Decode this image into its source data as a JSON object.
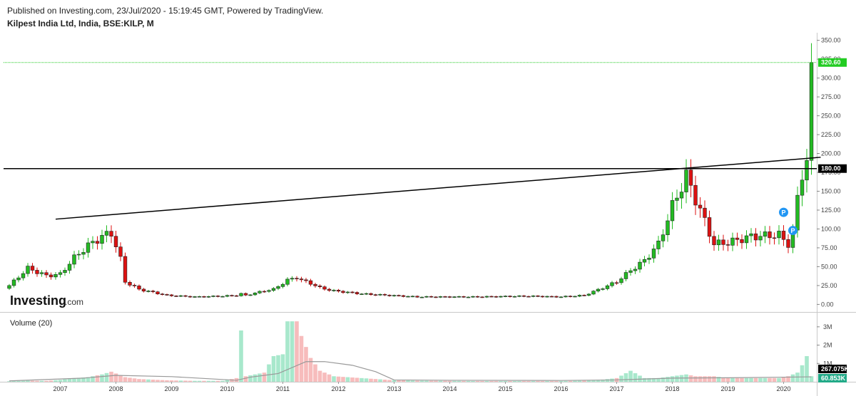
{
  "header": {
    "published": "Published on Investing.com, 23/Jul/2020 - 15:19:45 GMT, Powered by TradingView.",
    "symbol": "Kilpest India Ltd, India, BSE:KILP, M"
  },
  "logo": {
    "main": "Investing",
    "suffix": ".com"
  },
  "volume_panel": {
    "label": "Volume (20)"
  },
  "colors": {
    "up": "#22bb22",
    "down": "#dd1111",
    "vol_up": "#a8e8cc",
    "vol_down": "#f7bcbc",
    "ma": "#999999",
    "last_price_line": "#22cc22"
  },
  "markers": [
    {
      "label": "P",
      "date": "2020-01",
      "price": 122
    },
    {
      "label": "P",
      "date": "2020-03",
      "price": 98
    }
  ],
  "chart_data": {
    "type": "candlestick",
    "period": "monthly",
    "price_axis": {
      "ticks": [
        "350.00",
        "325.00",
        "300.00",
        "275.00",
        "250.00",
        "225.00",
        "200.00",
        "175.00",
        "150.00",
        "125.00",
        "100.00",
        "75.00",
        "50.00",
        "25.00",
        "0.00"
      ],
      "range": [
        -10,
        360
      ]
    },
    "volume_axis": {
      "ticks": [
        "3M",
        "2M",
        "1M"
      ],
      "range": [
        0,
        3500000
      ]
    },
    "x_axis": {
      "ticks": [
        "2007",
        "2008",
        "2009",
        "2010",
        "2011",
        "2012",
        "2013",
        "2014",
        "2015",
        "2016",
        "2017",
        "2018",
        "2019",
        "2020"
      ]
    },
    "tags": [
      {
        "label": "320.60",
        "value": 320.6,
        "color": "#22cc22"
      },
      {
        "label": "180.00",
        "value": 180,
        "color": "#000000"
      }
    ],
    "vol_tags": [
      {
        "label": "267.075K",
        "value": 267075,
        "color": "#000000"
      },
      {
        "label": "60.853K",
        "value": 60853,
        "color": "#22aa88"
      }
    ],
    "horizontal_lines": [
      {
        "value": 180,
        "style": "solid",
        "color": "#000000"
      },
      {
        "value": 320.6,
        "style": "dotted",
        "color": "#22cc22"
      }
    ],
    "trendline": {
      "start": {
        "date": "2006-12",
        "price": 113
      },
      "end": {
        "date": "2020-09",
        "price": 195
      }
    },
    "anchors": [
      [
        "2006-02",
        25,
        30000
      ],
      [
        "2006-06",
        48,
        60000
      ],
      [
        "2006-10",
        38,
        50000
      ],
      [
        "2007-01",
        40,
        100000
      ],
      [
        "2007-04",
        62,
        200000
      ],
      [
        "2007-07",
        78,
        250000
      ],
      [
        "2007-10",
        90,
        400000
      ],
      [
        "2007-12",
        95,
        550000
      ],
      [
        "2008-02",
        60,
        350000
      ],
      [
        "2008-03",
        30,
        250000
      ],
      [
        "2008-06",
        20,
        150000
      ],
      [
        "2008-12",
        12,
        80000
      ],
      [
        "2009-06",
        10,
        50000
      ],
      [
        "2009-12",
        11,
        50000
      ],
      [
        "2010-03",
        12,
        200000
      ],
      [
        "2010-04",
        14,
        2800000
      ],
      [
        "2010-05",
        12,
        300000
      ],
      [
        "2010-09",
        18,
        500000
      ],
      [
        "2010-11",
        20,
        1400000
      ],
      [
        "2011-01",
        28,
        1500000
      ],
      [
        "2011-02",
        32,
        3300000
      ],
      [
        "2011-04",
        36,
        3300000
      ],
      [
        "2011-05",
        32,
        2500000
      ],
      [
        "2011-07",
        28,
        1300000
      ],
      [
        "2011-09",
        22,
        600000
      ],
      [
        "2011-12",
        18,
        300000
      ],
      [
        "2012-06",
        14,
        200000
      ],
      [
        "2012-12",
        12,
        100000
      ],
      [
        "2013-06",
        10,
        60000
      ],
      [
        "2013-12",
        10,
        50000
      ],
      [
        "2014-06",
        10,
        40000
      ],
      [
        "2015-06",
        11,
        40000
      ],
      [
        "2016-01",
        10,
        40000
      ],
      [
        "2016-06",
        12,
        60000
      ],
      [
        "2016-10",
        22,
        120000
      ],
      [
        "2017-01",
        30,
        200000
      ],
      [
        "2017-04",
        45,
        600000
      ],
      [
        "2017-07",
        58,
        200000
      ],
      [
        "2017-10",
        80,
        200000
      ],
      [
        "2018-01",
        130,
        300000
      ],
      [
        "2018-04",
        170,
        400000
      ],
      [
        "2018-06",
        140,
        300000
      ],
      [
        "2018-08",
        110,
        300000
      ],
      [
        "2018-10",
        80,
        300000
      ],
      [
        "2019-01",
        82,
        200000
      ],
      [
        "2019-06",
        90,
        200000
      ],
      [
        "2019-12",
        92,
        200000
      ],
      [
        "2020-02",
        80,
        300000
      ],
      [
        "2020-03",
        95,
        400000
      ],
      [
        "2020-04",
        140,
        500000
      ],
      [
        "2020-05",
        175,
        900000
      ],
      [
        "2020-06",
        190,
        1400000
      ],
      [
        "2020-07",
        320.6,
        300000
      ]
    ],
    "ma_points": [
      [
        "2006-02",
        0.05
      ],
      [
        "2007-06",
        0.2
      ],
      [
        "2008-01",
        0.35
      ],
      [
        "2009-01",
        0.28
      ],
      [
        "2010-03",
        0.08
      ],
      [
        "2010-06",
        0.25
      ],
      [
        "2010-12",
        0.45
      ],
      [
        "2011-06",
        1.1
      ],
      [
        "2011-10",
        1.1
      ],
      [
        "2012-04",
        0.9
      ],
      [
        "2012-09",
        0.55
      ],
      [
        "2013-01",
        0.1
      ],
      [
        "2014-01",
        0.08
      ],
      [
        "2016-01",
        0.07
      ],
      [
        "2017-01",
        0.1
      ],
      [
        "2018-01",
        0.2
      ],
      [
        "2019-01",
        0.22
      ],
      [
        "2020-01",
        0.25
      ],
      [
        "2020-07",
        0.27
      ]
    ]
  }
}
